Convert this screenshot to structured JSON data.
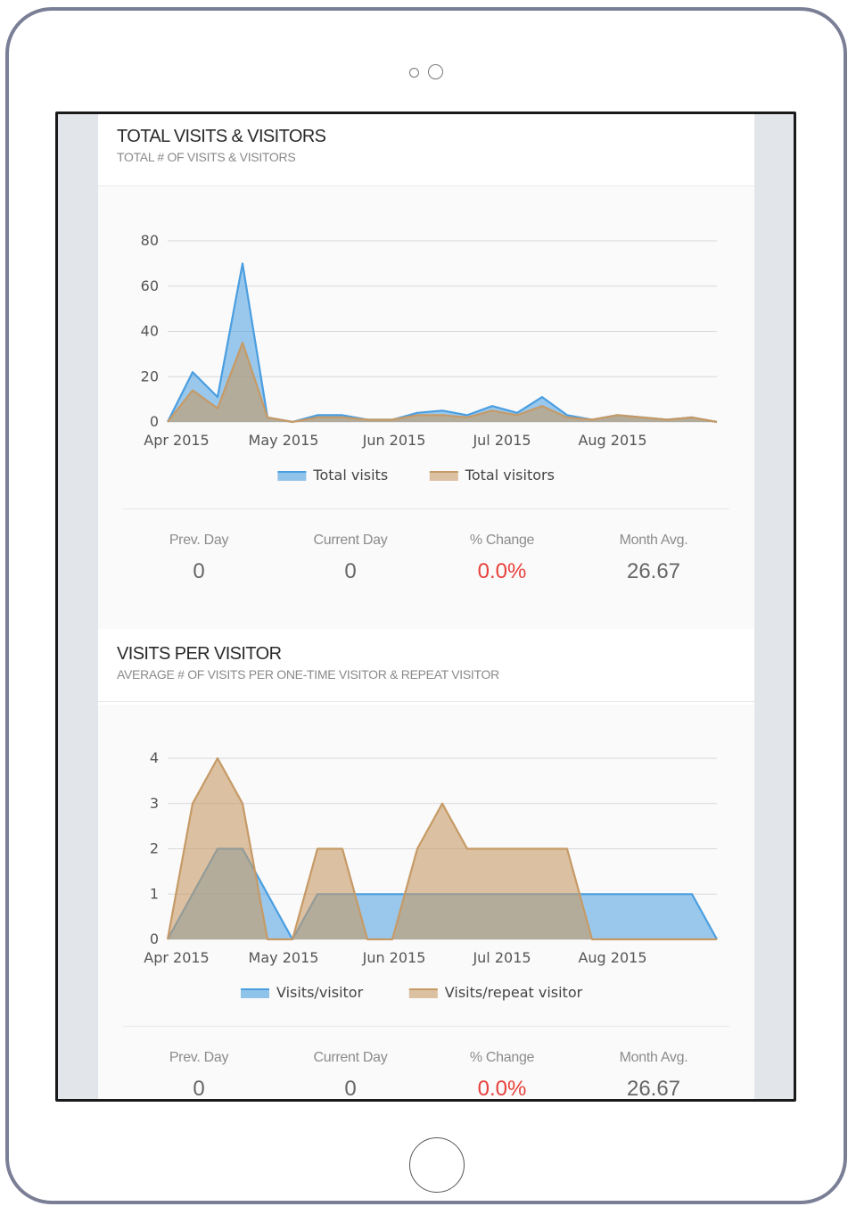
{
  "sections": [
    {
      "title": "TOTAL VISITS & VISITORS",
      "subtitle": "TOTAL # OF VISITS & VISITORS",
      "stats": [
        {
          "label": "Prev. Day",
          "value": "0"
        },
        {
          "label": "Current Day",
          "value": "0"
        },
        {
          "label": "% Change",
          "value": "0.0%"
        },
        {
          "label": "Month Avg.",
          "value": "26.67"
        }
      ]
    },
    {
      "title": "VISITS PER VISITOR",
      "subtitle": "AVERAGE # OF VISITS PER ONE-TIME VISITOR & REPEAT VISITOR",
      "stats": [
        {
          "label": "Prev. Day",
          "value": "0"
        },
        {
          "label": "Current Day",
          "value": "0"
        },
        {
          "label": "% Change",
          "value": "0.0%"
        },
        {
          "label": "Month Avg.",
          "value": "26.67"
        }
      ]
    }
  ],
  "colors": {
    "blue": "#4a9ee0",
    "blue_fill": "#8ec2ea",
    "tan": "#c69a66",
    "tan_fill": "#d9b58d",
    "negative": "#e8413c"
  },
  "chart_data": [
    {
      "type": "area",
      "x_ticks": [
        "Apr 2015",
        "May 2015",
        "Jun 2015",
        "Jul 2015",
        "Aug 2015"
      ],
      "y_ticks": [
        0,
        20,
        40,
        60,
        80
      ],
      "ylim": [
        0,
        80
      ],
      "series": [
        {
          "name": "Total visits",
          "color": "#4a9ee0",
          "values": [
            0,
            22,
            11,
            70,
            2,
            0,
            3,
            3,
            1,
            1,
            4,
            5,
            3,
            7,
            4,
            11,
            3,
            1,
            3,
            2,
            1,
            2,
            0
          ]
        },
        {
          "name": "Total visitors",
          "color": "#c69a66",
          "values": [
            0,
            14,
            6,
            35,
            2,
            0,
            2,
            2,
            1,
            1,
            3,
            3,
            2,
            5,
            3,
            7,
            2,
            1,
            3,
            2,
            1,
            2,
            0
          ]
        }
      ]
    },
    {
      "type": "area",
      "x_ticks": [
        "Apr 2015",
        "May 2015",
        "Jun 2015",
        "Jul 2015",
        "Aug 2015"
      ],
      "y_ticks": [
        0,
        1,
        2,
        3,
        4
      ],
      "ylim": [
        0,
        4
      ],
      "series": [
        {
          "name": "Visits/visitor",
          "color": "#4a9ee0",
          "values": [
            0,
            1,
            2,
            2,
            1,
            0,
            1,
            1,
            1,
            1,
            1,
            1,
            1,
            1,
            1,
            1,
            1,
            1,
            1,
            1,
            1,
            1,
            0
          ]
        },
        {
          "name": "Visits/repeat visitor",
          "color": "#c69a66",
          "values": [
            0,
            3,
            4,
            3,
            0,
            0,
            2,
            2,
            0,
            0,
            2,
            3,
            2,
            2,
            2,
            2,
            2,
            0,
            0,
            0,
            0,
            0,
            0
          ]
        }
      ]
    }
  ]
}
